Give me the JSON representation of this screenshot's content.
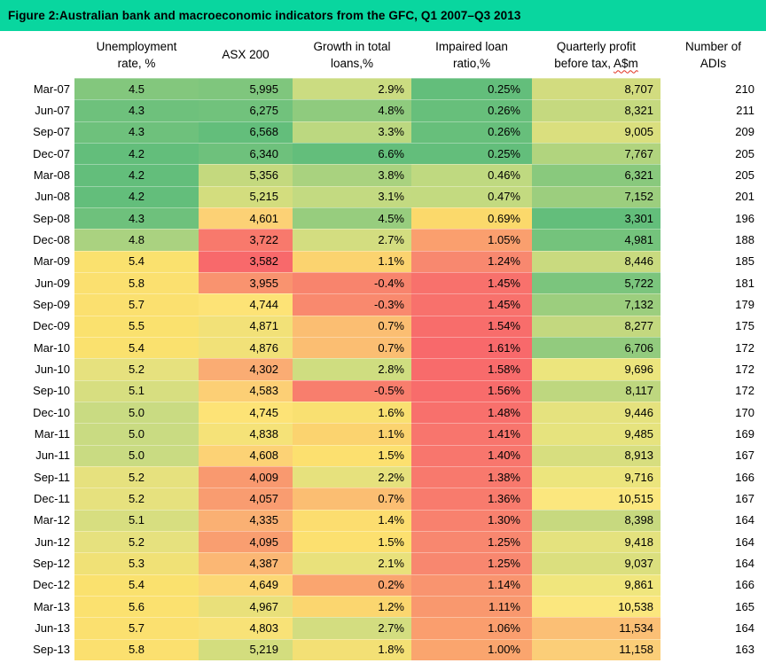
{
  "title": "Figure 2:Australian bank and macroeconomic indicators from the GFC, Q1 2007–Q3 2013",
  "colors": {
    "title_bar": "#09D69F",
    "text": "#000000",
    "highlight_border": "#000000",
    "highlight_border_sep13": "#4F4F4F",
    "squiggle": "#E0301E",
    "scale_green": "#63BE7B",
    "scale_yellow": "#FCE06F",
    "scale_red": "#F8696B"
  },
  "headers": {
    "unemployment": [
      "Unemployment",
      "rate, %"
    ],
    "asx": [
      "ASX 200"
    ],
    "growth": [
      "Growth in total",
      "loans,%"
    ],
    "impaired": [
      "Impaired loan",
      "ratio,%"
    ],
    "profit": [
      "Quarterly profit",
      "before tax, "
    ],
    "profit_asm": "A$m",
    "adis": [
      "Number of",
      "ADIs"
    ]
  },
  "chart_data": {
    "type": "table",
    "title": "Figure 2:Australian bank and macroeconomic indicators from the GFC, Q1 2007–Q3 2013",
    "categories": [
      "Mar-07",
      "Jun-07",
      "Sep-07",
      "Dec-07",
      "Mar-08",
      "Jun-08",
      "Sep-08",
      "Dec-08",
      "Mar-09",
      "Jun-09",
      "Sep-09",
      "Dec-09",
      "Mar-10",
      "Jun-10",
      "Sep-10",
      "Dec-10",
      "Mar-11",
      "Jun-11",
      "Sep-11",
      "Dec-11",
      "Mar-12",
      "Jun-12",
      "Sep-12",
      "Dec-12",
      "Mar-13",
      "Jun-13",
      "Sep-13"
    ],
    "series": [
      {
        "name": "Unemployment rate, %",
        "values": [
          4.5,
          4.3,
          4.3,
          4.2,
          4.2,
          4.2,
          4.3,
          4.8,
          5.4,
          5.8,
          5.7,
          5.5,
          5.4,
          5.2,
          5.1,
          5.0,
          5.0,
          5.0,
          5.2,
          5.2,
          5.1,
          5.2,
          5.3,
          5.4,
          5.6,
          5.7,
          5.8
        ]
      },
      {
        "name": "ASX 200",
        "values": [
          5995,
          6275,
          6568,
          6340,
          5356,
          5215,
          4601,
          3722,
          3582,
          3955,
          4744,
          4871,
          4876,
          4302,
          4583,
          4745,
          4838,
          4608,
          4009,
          4057,
          4335,
          4095,
          4387,
          4649,
          4967,
          4803,
          5219
        ]
      },
      {
        "name": "Growth in total loans,%",
        "values": [
          2.9,
          4.8,
          3.3,
          6.6,
          3.8,
          3.1,
          4.5,
          2.7,
          1.1,
          -0.4,
          -0.3,
          0.7,
          0.7,
          2.8,
          -0.5,
          1.6,
          1.1,
          1.5,
          2.2,
          0.7,
          1.4,
          1.5,
          2.1,
          0.2,
          1.2,
          2.7,
          1.8
        ]
      },
      {
        "name": "Impaired loan ratio,%",
        "values": [
          0.25,
          0.26,
          0.26,
          0.25,
          0.46,
          0.47,
          0.69,
          1.05,
          1.24,
          1.45,
          1.45,
          1.54,
          1.61,
          1.58,
          1.56,
          1.48,
          1.41,
          1.4,
          1.38,
          1.36,
          1.3,
          1.25,
          1.25,
          1.14,
          1.11,
          1.06,
          1.0
        ]
      },
      {
        "name": "Quarterly profit before tax, A$m",
        "values": [
          8707,
          8321,
          9005,
          7767,
          6321,
          7152,
          3301,
          4981,
          8446,
          5722,
          7132,
          8277,
          6706,
          9696,
          8117,
          9446,
          9485,
          8913,
          9716,
          10515,
          8398,
          9418,
          9037,
          9861,
          10538,
          11534,
          11158
        ]
      },
      {
        "name": "Number of ADIs",
        "values": [
          210,
          211,
          209,
          205,
          205,
          201,
          196,
          188,
          185,
          181,
          179,
          175,
          172,
          172,
          172,
          170,
          169,
          167,
          166,
          167,
          164,
          164,
          164,
          166,
          165,
          164,
          163
        ]
      }
    ],
    "highlighted_rows": [
      {
        "row": "Sep-08",
        "border": "#000000"
      },
      {
        "row": "Mar-09",
        "border": "#000000"
      },
      {
        "row": "Sep-13",
        "border": "#4F4F4F"
      }
    ]
  },
  "scales": {
    "unemployment": [
      [
        4.2,
        "#63BE7B"
      ],
      [
        4.65,
        "#93CC7E"
      ],
      [
        5.0,
        "#C9DB82"
      ],
      [
        5.2,
        "#E6E17E"
      ],
      [
        5.4,
        "#FAE16E"
      ],
      [
        5.8,
        "#FBE06F"
      ]
    ],
    "asx": [
      [
        3582,
        "#F8696B"
      ],
      [
        4000,
        "#F9986F"
      ],
      [
        4300,
        "#FAAC73"
      ],
      [
        4744,
        "#FDE376"
      ],
      [
        5219,
        "#D3DD7E"
      ],
      [
        5995,
        "#7FC67D"
      ],
      [
        6568,
        "#63BE7B"
      ]
    ],
    "growth": [
      [
        -0.5,
        "#F87E6D"
      ],
      [
        0.2,
        "#FAA56F"
      ],
      [
        0.7,
        "#FBBE72"
      ],
      [
        1.1,
        "#FBD36F"
      ],
      [
        1.5,
        "#FCE06F"
      ],
      [
        2.2,
        "#E6E17D"
      ],
      [
        2.9,
        "#CBDC81"
      ],
      [
        3.8,
        "#A9D27F"
      ],
      [
        4.8,
        "#8FCB7E"
      ],
      [
        6.6,
        "#63BE7B"
      ]
    ],
    "impaired": [
      [
        0.25,
        "#63BE7B"
      ],
      [
        0.47,
        "#C3DA80"
      ],
      [
        0.69,
        "#FBD96B"
      ],
      [
        1.0,
        "#FAA56E"
      ],
      [
        1.24,
        "#F8886F"
      ],
      [
        1.45,
        "#F8716C"
      ],
      [
        1.61,
        "#F8696B"
      ]
    ],
    "profit": [
      [
        3301,
        "#63BE7B"
      ],
      [
        5722,
        "#7BC57D"
      ],
      [
        7152,
        "#9CCE7E"
      ],
      [
        8707,
        "#D2DC7F"
      ],
      [
        9861,
        "#F0E67D"
      ],
      [
        10538,
        "#FBE77E"
      ],
      [
        11534,
        "#FBBF75"
      ]
    ]
  }
}
